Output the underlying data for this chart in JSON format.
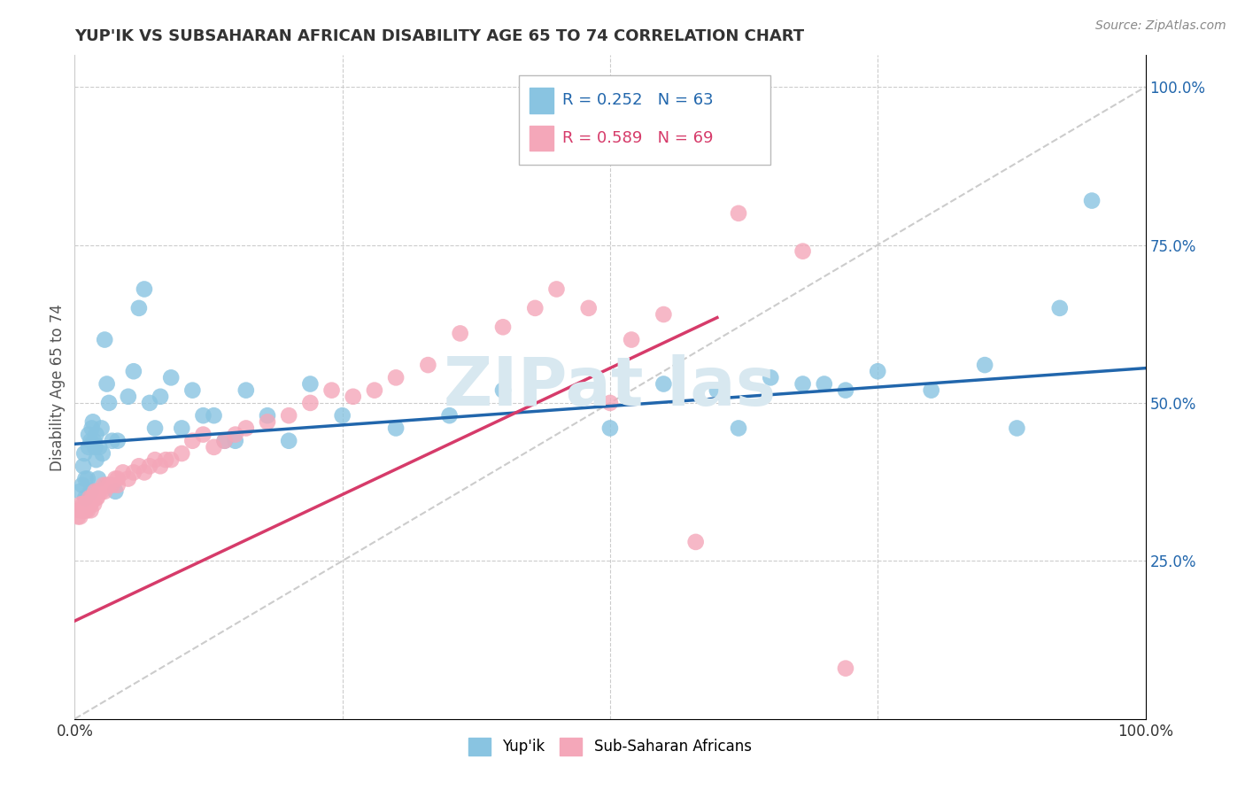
{
  "title": "YUP'IK VS SUBSAHARAN AFRICAN DISABILITY AGE 65 TO 74 CORRELATION CHART",
  "source": "Source: ZipAtlas.com",
  "ylabel": "Disability Age 65 to 74",
  "legend_blue_label": "Yup'ik",
  "legend_pink_label": "Sub-Saharan Africans",
  "legend_blue_r": "R = 0.252",
  "legend_blue_n": "N = 63",
  "legend_pink_r": "R = 0.589",
  "legend_pink_n": "N = 69",
  "background_color": "#ffffff",
  "blue_color": "#89c4e1",
  "pink_color": "#f4a7b9",
  "blue_line_color": "#2166ac",
  "pink_line_color": "#d63b6a",
  "diagonal_color": "#cccccc",
  "blue_r_color": "#2166ac",
  "pink_r_color": "#d63b6a",
  "grid_color": "#cccccc",
  "watermark_color": "#d8e8f0",
  "blue_scatter_x": [
    0.005,
    0.007,
    0.008,
    0.009,
    0.01,
    0.01,
    0.012,
    0.013,
    0.013,
    0.015,
    0.015,
    0.016,
    0.017,
    0.018,
    0.019,
    0.02,
    0.02,
    0.022,
    0.023,
    0.025,
    0.026,
    0.028,
    0.03,
    0.032,
    0.035,
    0.038,
    0.04,
    0.05,
    0.055,
    0.06,
    0.065,
    0.07,
    0.075,
    0.08,
    0.09,
    0.1,
    0.11,
    0.12,
    0.13,
    0.14,
    0.15,
    0.16,
    0.18,
    0.2,
    0.22,
    0.25,
    0.3,
    0.35,
    0.4,
    0.5,
    0.55,
    0.6,
    0.62,
    0.65,
    0.68,
    0.7,
    0.72,
    0.75,
    0.8,
    0.85,
    0.88,
    0.92,
    0.95
  ],
  "blue_scatter_y": [
    0.36,
    0.37,
    0.4,
    0.42,
    0.35,
    0.38,
    0.38,
    0.43,
    0.45,
    0.44,
    0.36,
    0.46,
    0.47,
    0.44,
    0.43,
    0.41,
    0.45,
    0.38,
    0.43,
    0.46,
    0.42,
    0.6,
    0.53,
    0.5,
    0.44,
    0.36,
    0.44,
    0.51,
    0.55,
    0.65,
    0.68,
    0.5,
    0.46,
    0.51,
    0.54,
    0.46,
    0.52,
    0.48,
    0.48,
    0.44,
    0.44,
    0.52,
    0.48,
    0.44,
    0.53,
    0.48,
    0.46,
    0.48,
    0.52,
    0.46,
    0.53,
    0.52,
    0.46,
    0.54,
    0.53,
    0.53,
    0.52,
    0.55,
    0.52,
    0.56,
    0.46,
    0.65,
    0.82
  ],
  "pink_scatter_x": [
    0.003,
    0.004,
    0.005,
    0.006,
    0.007,
    0.008,
    0.009,
    0.01,
    0.01,
    0.011,
    0.012,
    0.013,
    0.014,
    0.015,
    0.015,
    0.016,
    0.017,
    0.018,
    0.019,
    0.02,
    0.021,
    0.022,
    0.023,
    0.025,
    0.027,
    0.028,
    0.03,
    0.032,
    0.035,
    0.038,
    0.04,
    0.04,
    0.045,
    0.05,
    0.055,
    0.06,
    0.065,
    0.07,
    0.075,
    0.08,
    0.085,
    0.09,
    0.1,
    0.11,
    0.12,
    0.13,
    0.14,
    0.15,
    0.16,
    0.18,
    0.2,
    0.22,
    0.24,
    0.26,
    0.28,
    0.3,
    0.33,
    0.36,
    0.4,
    0.43,
    0.45,
    0.48,
    0.5,
    0.52,
    0.55,
    0.58,
    0.62,
    0.68,
    0.72
  ],
  "pink_scatter_y": [
    0.32,
    0.33,
    0.32,
    0.34,
    0.33,
    0.34,
    0.33,
    0.33,
    0.34,
    0.34,
    0.33,
    0.34,
    0.35,
    0.33,
    0.34,
    0.35,
    0.35,
    0.34,
    0.36,
    0.35,
    0.35,
    0.36,
    0.36,
    0.36,
    0.37,
    0.36,
    0.37,
    0.37,
    0.37,
    0.38,
    0.38,
    0.37,
    0.39,
    0.38,
    0.39,
    0.4,
    0.39,
    0.4,
    0.41,
    0.4,
    0.41,
    0.41,
    0.42,
    0.44,
    0.45,
    0.43,
    0.44,
    0.45,
    0.46,
    0.47,
    0.48,
    0.5,
    0.52,
    0.51,
    0.52,
    0.54,
    0.56,
    0.61,
    0.62,
    0.65,
    0.68,
    0.65,
    0.5,
    0.6,
    0.64,
    0.28,
    0.8,
    0.74,
    0.08
  ],
  "blue_line_x0": 0.0,
  "blue_line_y0": 0.435,
  "blue_line_x1": 1.0,
  "blue_line_y1": 0.555,
  "pink_line_x0": 0.0,
  "pink_line_y0": 0.155,
  "pink_line_x1": 0.6,
  "pink_line_y1": 0.635,
  "xlim": [
    0.0,
    1.0
  ],
  "ylim": [
    0.0,
    1.05
  ]
}
